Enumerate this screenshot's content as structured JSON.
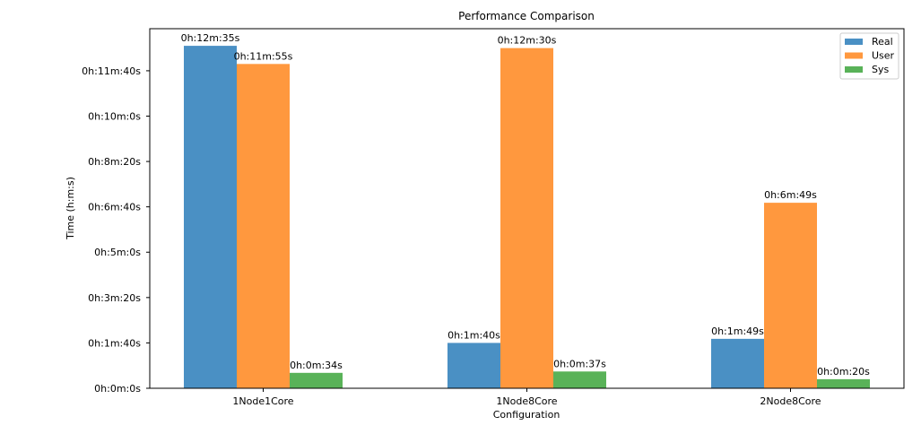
{
  "chart_data": {
    "type": "bar",
    "title": "Performance Comparison",
    "xlabel": "Configuration",
    "ylabel": "Time (h:m:s)",
    "categories": [
      "1Node1Core",
      "1Node8Core",
      "2Node8Core"
    ],
    "series": [
      {
        "name": "Real",
        "color": "#4a90c4",
        "values": [
          755,
          100,
          109
        ],
        "labels": [
          "0h:12m:35s",
          "0h:1m:40s",
          "0h:1m:49s"
        ]
      },
      {
        "name": "User",
        "color": "#ff983e",
        "values": [
          715,
          750,
          409
        ],
        "labels": [
          "0h:11m:55s",
          "0h:12m:30s",
          "0h:6m:49s"
        ]
      },
      {
        "name": "Sys",
        "color": "#59b258",
        "values": [
          34,
          37,
          20
        ],
        "labels": [
          "0h:0m:34s",
          "0h:0m:37s",
          "0h:0m:20s"
        ]
      }
    ],
    "y_unit": "seconds",
    "ylim": [
      0,
      792.75
    ],
    "yticks": [
      0,
      100,
      200,
      300,
      400,
      500,
      600,
      700
    ],
    "ytick_labels": [
      "0h:0m:0s",
      "0h:1m:40s",
      "0h:3m:20s",
      "0h:5m:0s",
      "0h:6m:40s",
      "0h:8m:20s",
      "0h:10m:0s",
      "0h:11m:40s"
    ],
    "grid": false,
    "legend_position": "top-right"
  }
}
